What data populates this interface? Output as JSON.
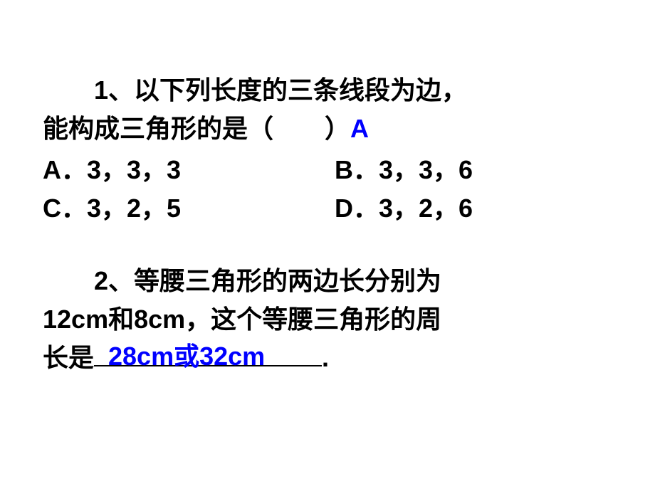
{
  "q1": {
    "line1": "1、以下列长度的三条线段为边，",
    "line2_prefix": "能构成三角形的是（　　）",
    "answer": "A",
    "options": {
      "A": "A．3，3，3",
      "B": "B．3，3，6",
      "C": "C．3，2，5",
      "D": "D．3，2，6"
    }
  },
  "q2": {
    "line1": "2、等腰三角形的两边长分别为",
    "line2": "12cm和8cm，这个等腰三角形的周",
    "line3_prefix": "长是",
    "answer": "28cm或32cm",
    "line3_suffix": "."
  },
  "colors": {
    "text": "#000000",
    "answer": "#0000ff",
    "background": "#ffffff"
  }
}
